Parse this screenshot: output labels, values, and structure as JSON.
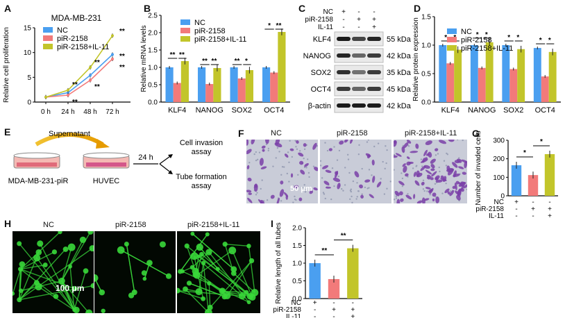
{
  "panels": {
    "A": {
      "letter": "A",
      "title": "MDA-MB-231",
      "legend": [
        "NC",
        "piR-2158",
        "piR-2158+IL-11"
      ],
      "stars": [
        "**",
        "**",
        "**",
        "**",
        "**",
        "**",
        "**"
      ]
    },
    "B": {
      "letter": "B",
      "legend": [
        "NC",
        "piR-2158",
        "piR-2158+IL-11"
      ],
      "pair_sig": [
        "**",
        "**",
        "**",
        "**",
        "**",
        "*",
        "*",
        "**"
      ]
    },
    "C": {
      "letter": "C",
      "header": {
        "nc": "NC",
        "pir": "piR-2158",
        "il": "IL-11"
      },
      "treat_marks": {
        "nc": [
          "+",
          "-",
          "-"
        ],
        "pir": [
          "-",
          "+",
          "+"
        ],
        "il": [
          "-",
          "-",
          "+"
        ]
      },
      "rows": [
        {
          "label": "KLF4",
          "kda": "55 kDa"
        },
        {
          "label": "NANOG",
          "kda": "42 kDa"
        },
        {
          "label": "SOX2",
          "kda": "35 kDa"
        },
        {
          "label": "OCT4",
          "kda": "45 kDa"
        },
        {
          "label": "β-actin",
          "kda": "42 kDa"
        }
      ]
    },
    "D": {
      "letter": "D",
      "legend": [
        "NC",
        "piR-2158",
        "piR-2158+IL-11"
      ],
      "pair_sig": [
        "*",
        "*",
        "*",
        "*",
        "*",
        "*",
        "*",
        "*"
      ]
    },
    "E": {
      "letter": "E",
      "supernatant": "Supernatant",
      "dish1": "MDA-MB-231-piR",
      "dish2": "HUVEC",
      "time": "24 h",
      "out1_line1": "Cell invasion",
      "out1_line2": "assay",
      "out2_line1": "Tube formation",
      "out2_line2": "assay"
    },
    "F": {
      "letter": "F",
      "labels": [
        "NC",
        "piR-2158",
        "piR-2158+IL-11"
      ],
      "scale": "50 μm"
    },
    "G": {
      "letter": "G",
      "sig": [
        "*",
        "*"
      ],
      "rows": {
        "nc": {
          "label": "NC",
          "marks": [
            "+",
            "-",
            "-"
          ]
        },
        "pir": {
          "label": "piR-2158",
          "marks": [
            "-",
            "+",
            "+"
          ]
        },
        "il": {
          "label": "IL-11",
          "marks": [
            "-",
            "-",
            "+"
          ]
        }
      }
    },
    "H": {
      "letter": "H",
      "labels": [
        "NC",
        "piR-2158",
        "piR-2158+IL-11"
      ],
      "scale": "100 μm"
    },
    "I": {
      "letter": "I",
      "sig": [
        "**",
        "**"
      ],
      "rows": {
        "nc": {
          "label": "NC",
          "marks": [
            "+",
            "-",
            "-"
          ]
        },
        "pir": {
          "label": "piR-2158",
          "marks": [
            "-",
            "+",
            "+"
          ]
        },
        "il": {
          "label": "IL-11",
          "marks": [
            "-",
            "-",
            "+"
          ]
        }
      }
    }
  },
  "colors": {
    "nc": "#4a9ff0",
    "pir": "#f27a7a",
    "il": "#c2c52a",
    "fluor": "#39d83a",
    "stain": "#7a3fa8"
  },
  "chart_data": [
    {
      "panel": "A",
      "type": "line",
      "x": [
        "0 h",
        "24 h",
        "48 h",
        "72 h"
      ],
      "ylabel": "Relative cell proliferation",
      "ylim": [
        0,
        15
      ],
      "yticks": [
        0,
        5,
        10,
        15
      ],
      "series": [
        {
          "name": "NC",
          "values": [
            1.0,
            1.9,
            5.4,
            9.6
          ]
        },
        {
          "name": "piR-2158",
          "values": [
            1.0,
            1.4,
            4.4,
            8.7
          ]
        },
        {
          "name": "piR-2158+IL-11",
          "values": [
            1.0,
            2.4,
            7.0,
            13.4
          ]
        }
      ]
    },
    {
      "panel": "B",
      "type": "bar",
      "categories": [
        "KLF4",
        "NANOG",
        "SOX2",
        "OCT4"
      ],
      "ylabel": "Relative mRNA levels",
      "ylim": [
        0,
        2.5
      ],
      "yticks": [
        0.0,
        0.5,
        1.0,
        1.5,
        2.0,
        2.5
      ],
      "series": [
        {
          "name": "NC",
          "values": [
            1.0,
            1.0,
            1.0,
            1.0
          ]
        },
        {
          "name": "piR-2158",
          "values": [
            0.55,
            0.52,
            0.68,
            0.85
          ]
        },
        {
          "name": "piR-2158+IL-11",
          "values": [
            1.18,
            0.98,
            0.92,
            2.02
          ]
        }
      ]
    },
    {
      "panel": "D",
      "type": "bar",
      "categories": [
        "KLF4",
        "NANOG",
        "SOX2",
        "OCT4"
      ],
      "ylabel": "Relative protein expression",
      "ylim": [
        0,
        1.5
      ],
      "yticks": [
        0.0,
        0.5,
        1.0,
        1.5
      ],
      "series": [
        {
          "name": "NC",
          "values": [
            1.0,
            1.0,
            1.0,
            0.95
          ]
        },
        {
          "name": "piR-2158",
          "values": [
            0.68,
            0.6,
            0.58,
            0.45
          ]
        },
        {
          "name": "piR-2158+IL-11",
          "values": [
            0.92,
            1.05,
            0.93,
            0.88
          ]
        }
      ]
    },
    {
      "panel": "G",
      "type": "bar",
      "ylabel": "Number of invaded cells",
      "ylim": [
        0,
        300
      ],
      "yticks": [
        0,
        100,
        200,
        300
      ],
      "values": [
        165,
        112,
        225
      ]
    },
    {
      "panel": "I",
      "type": "bar",
      "ylabel": "Relative length of all tubes",
      "ylim": [
        0,
        2.0
      ],
      "yticks": [
        0.0,
        0.5,
        1.0,
        1.5,
        2.0
      ],
      "values": [
        1.0,
        0.55,
        1.42
      ]
    }
  ]
}
